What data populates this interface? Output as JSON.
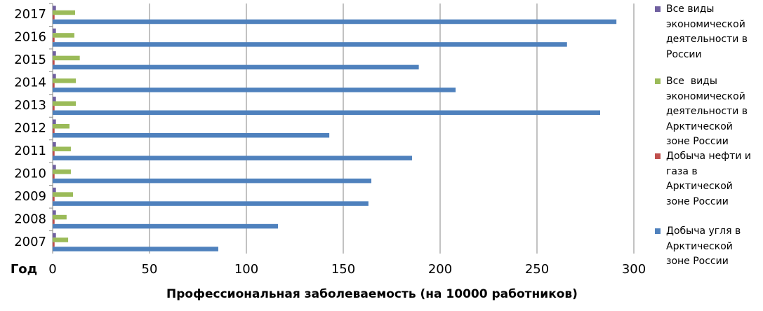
{
  "chart_data": {
    "type": "hbar",
    "y_label": "Год",
    "x_label": "Профессиональная заболеваемость (на 10000 работников)",
    "categories": [
      "2007",
      "2008",
      "2009",
      "2010",
      "2011",
      "2012",
      "2013",
      "2014",
      "2015",
      "2016",
      "2017"
    ],
    "series": [
      {
        "name": "Все виды экономической деятельности в России",
        "color": "#7060a0",
        "values": [
          1.7,
          1.7,
          1.7,
          1.7,
          1.7,
          1.7,
          1.7,
          1.7,
          1.7,
          1.7,
          1.7
        ]
      },
      {
        "name": "Все  виды экономической деятельности в Арктической зоне России",
        "color": "#9bbb59",
        "values": [
          8,
          7.2,
          10.5,
          9.4,
          9.4,
          8.7,
          12,
          12,
          14,
          11.2,
          11.6
        ]
      },
      {
        "name": "Добыча нефти и газа в Арктической зоне России",
        "color": "#c0504d",
        "values": [
          1,
          1,
          1,
          1,
          1,
          1,
          1,
          1,
          1,
          1,
          1
        ]
      },
      {
        "name": "Добыча угля в Арктической зоне России",
        "color": "#4f81bd",
        "values": [
          85.5,
          116.3,
          163,
          164.5,
          185.5,
          142.8,
          282.6,
          208,
          189,
          265.5,
          291
        ]
      }
    ],
    "xlim": [
      0,
      300
    ],
    "xticks": [
      0,
      50,
      100,
      150,
      200,
      250,
      300
    ],
    "grid": true
  }
}
